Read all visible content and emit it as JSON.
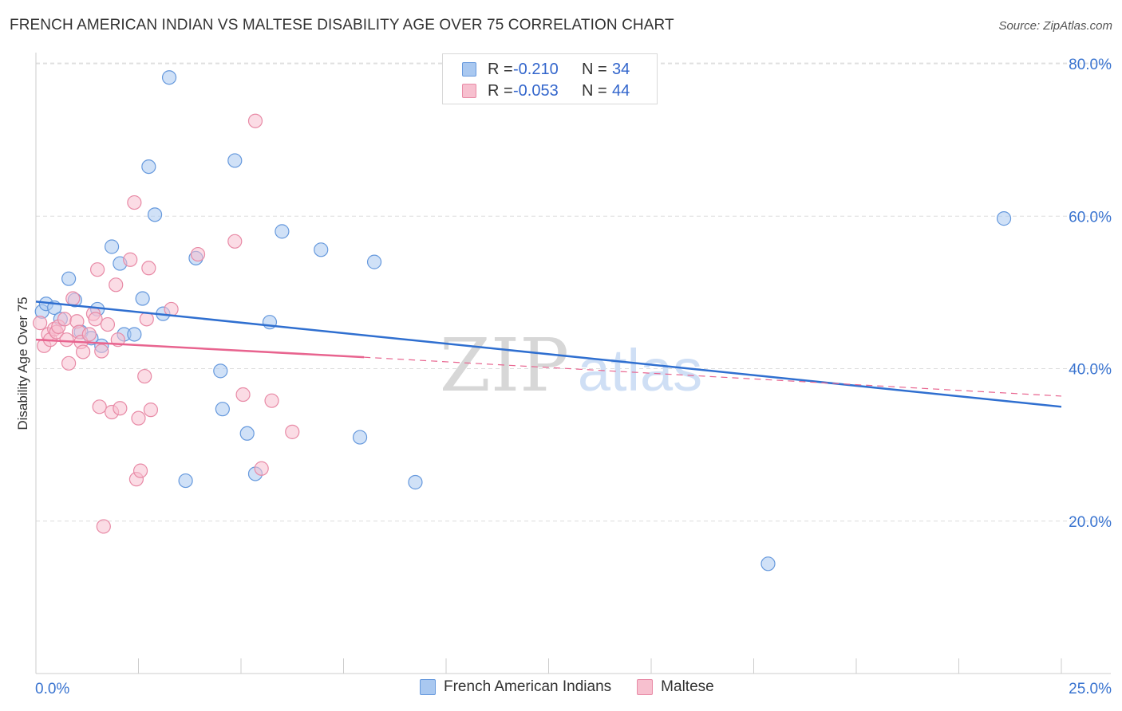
{
  "title": "FRENCH AMERICAN INDIAN VS MALTESE DISABILITY AGE OVER 75 CORRELATION CHART",
  "source": "Source: ZipAtlas.com",
  "watermark": {
    "zip": "ZIP",
    "atlas": "atlas"
  },
  "legend_top": {
    "rows": [
      {
        "r_label": "R =",
        "r_value": "-0.210",
        "n_label": "N =",
        "n_value": "34",
        "color": "#a9c8f0",
        "border": "#6699dd"
      },
      {
        "r_label": "R =",
        "r_value": "-0.053",
        "n_label": "N =",
        "n_value": "44",
        "color": "#f7c0cf",
        "border": "#e88aa6"
      }
    ]
  },
  "legend_bottom": [
    {
      "label": "French American Indians",
      "color": "#a9c8f0",
      "border": "#6699dd"
    },
    {
      "label": "Maltese",
      "color": "#f7c0cf",
      "border": "#e88aa6"
    }
  ],
  "chart_data": {
    "type": "scatter",
    "title": "FRENCH AMERICAN INDIAN VS MALTESE DISABILITY AGE OVER 75 CORRELATION CHART",
    "xlabel": "",
    "ylabel": "Disability Age Over 75",
    "xlim": [
      0,
      25
    ],
    "ylim": [
      0,
      80
    ],
    "x_ticks": [
      0,
      2.5,
      5,
      7.5,
      10,
      12.5,
      15,
      17.5,
      20,
      22.5,
      25
    ],
    "x_tick_labels_shown": {
      "0": "0.0%",
      "25": "25.0%"
    },
    "y_ticks": [
      20,
      40,
      60,
      80
    ],
    "y_tick_labels": [
      "20.0%",
      "40.0%",
      "60.0%",
      "80.0%"
    ],
    "series": [
      {
        "name": "French American Indians",
        "color": "#a9c8f0",
        "stroke": "#6699dd",
        "line_color": "#2f6fd0",
        "trend": {
          "x": [
            0,
            25
          ],
          "y": [
            48.8,
            35.0
          ],
          "dashed_from": null
        },
        "points": [
          {
            "x": 0.15,
            "y": 47.5
          },
          {
            "x": 0.25,
            "y": 48.5
          },
          {
            "x": 0.45,
            "y": 48.0
          },
          {
            "x": 0.6,
            "y": 46.5
          },
          {
            "x": 0.8,
            "y": 51.8
          },
          {
            "x": 0.95,
            "y": 49.0
          },
          {
            "x": 1.1,
            "y": 44.8
          },
          {
            "x": 1.35,
            "y": 44.0
          },
          {
            "x": 1.5,
            "y": 47.8
          },
          {
            "x": 1.6,
            "y": 43.0
          },
          {
            "x": 1.85,
            "y": 56.0
          },
          {
            "x": 2.05,
            "y": 53.8
          },
          {
            "x": 2.15,
            "y": 44.5
          },
          {
            "x": 2.4,
            "y": 44.5
          },
          {
            "x": 2.6,
            "y": 49.2
          },
          {
            "x": 2.75,
            "y": 66.5
          },
          {
            "x": 2.9,
            "y": 60.2
          },
          {
            "x": 3.1,
            "y": 47.2
          },
          {
            "x": 3.25,
            "y": 78.2
          },
          {
            "x": 3.65,
            "y": 25.3
          },
          {
            "x": 3.9,
            "y": 54.5
          },
          {
            "x": 4.5,
            "y": 39.7
          },
          {
            "x": 4.55,
            "y": 34.7
          },
          {
            "x": 4.85,
            "y": 67.3
          },
          {
            "x": 5.15,
            "y": 31.5
          },
          {
            "x": 5.35,
            "y": 26.2
          },
          {
            "x": 5.7,
            "y": 46.1
          },
          {
            "x": 6.0,
            "y": 58.0
          },
          {
            "x": 6.95,
            "y": 55.6
          },
          {
            "x": 7.9,
            "y": 31.0
          },
          {
            "x": 8.25,
            "y": 54.0
          },
          {
            "x": 9.25,
            "y": 25.1
          },
          {
            "x": 17.85,
            "y": 14.4
          },
          {
            "x": 23.6,
            "y": 59.7
          }
        ]
      },
      {
        "name": "Maltese",
        "color": "#f7c0cf",
        "stroke": "#e88aa6",
        "line_color": "#e8648f",
        "trend": {
          "x": [
            0,
            8.0,
            25
          ],
          "y": [
            43.8,
            41.5,
            36.4
          ],
          "dashed_from": 8.0
        },
        "points": [
          {
            "x": 0.1,
            "y": 46.0
          },
          {
            "x": 0.2,
            "y": 43.0
          },
          {
            "x": 0.3,
            "y": 44.5
          },
          {
            "x": 0.35,
            "y": 43.8
          },
          {
            "x": 0.45,
            "y": 45.2
          },
          {
            "x": 0.5,
            "y": 44.8
          },
          {
            "x": 0.55,
            "y": 45.5
          },
          {
            "x": 0.7,
            "y": 46.5
          },
          {
            "x": 0.75,
            "y": 43.8
          },
          {
            "x": 0.8,
            "y": 40.7
          },
          {
            "x": 0.9,
            "y": 49.2
          },
          {
            "x": 1.0,
            "y": 46.2
          },
          {
            "x": 1.05,
            "y": 44.8
          },
          {
            "x": 1.1,
            "y": 43.5
          },
          {
            "x": 1.15,
            "y": 42.2
          },
          {
            "x": 1.3,
            "y": 44.5
          },
          {
            "x": 1.4,
            "y": 47.2
          },
          {
            "x": 1.45,
            "y": 46.5
          },
          {
            "x": 1.5,
            "y": 53.0
          },
          {
            "x": 1.55,
            "y": 35.0
          },
          {
            "x": 1.6,
            "y": 42.3
          },
          {
            "x": 1.65,
            "y": 19.3
          },
          {
            "x": 1.75,
            "y": 45.8
          },
          {
            "x": 1.85,
            "y": 34.3
          },
          {
            "x": 1.95,
            "y": 51.0
          },
          {
            "x": 2.0,
            "y": 43.8
          },
          {
            "x": 2.05,
            "y": 34.8
          },
          {
            "x": 2.3,
            "y": 54.3
          },
          {
            "x": 2.4,
            "y": 61.8
          },
          {
            "x": 2.45,
            "y": 25.5
          },
          {
            "x": 2.5,
            "y": 33.5
          },
          {
            "x": 2.55,
            "y": 26.6
          },
          {
            "x": 2.65,
            "y": 39.0
          },
          {
            "x": 2.7,
            "y": 46.5
          },
          {
            "x": 2.75,
            "y": 53.2
          },
          {
            "x": 2.8,
            "y": 34.6
          },
          {
            "x": 3.3,
            "y": 47.8
          },
          {
            "x": 3.95,
            "y": 55.0
          },
          {
            "x": 4.85,
            "y": 56.7
          },
          {
            "x": 5.05,
            "y": 36.6
          },
          {
            "x": 5.35,
            "y": 72.5
          },
          {
            "x": 5.5,
            "y": 26.9
          },
          {
            "x": 5.75,
            "y": 35.8
          },
          {
            "x": 6.25,
            "y": 31.7
          }
        ]
      }
    ]
  }
}
